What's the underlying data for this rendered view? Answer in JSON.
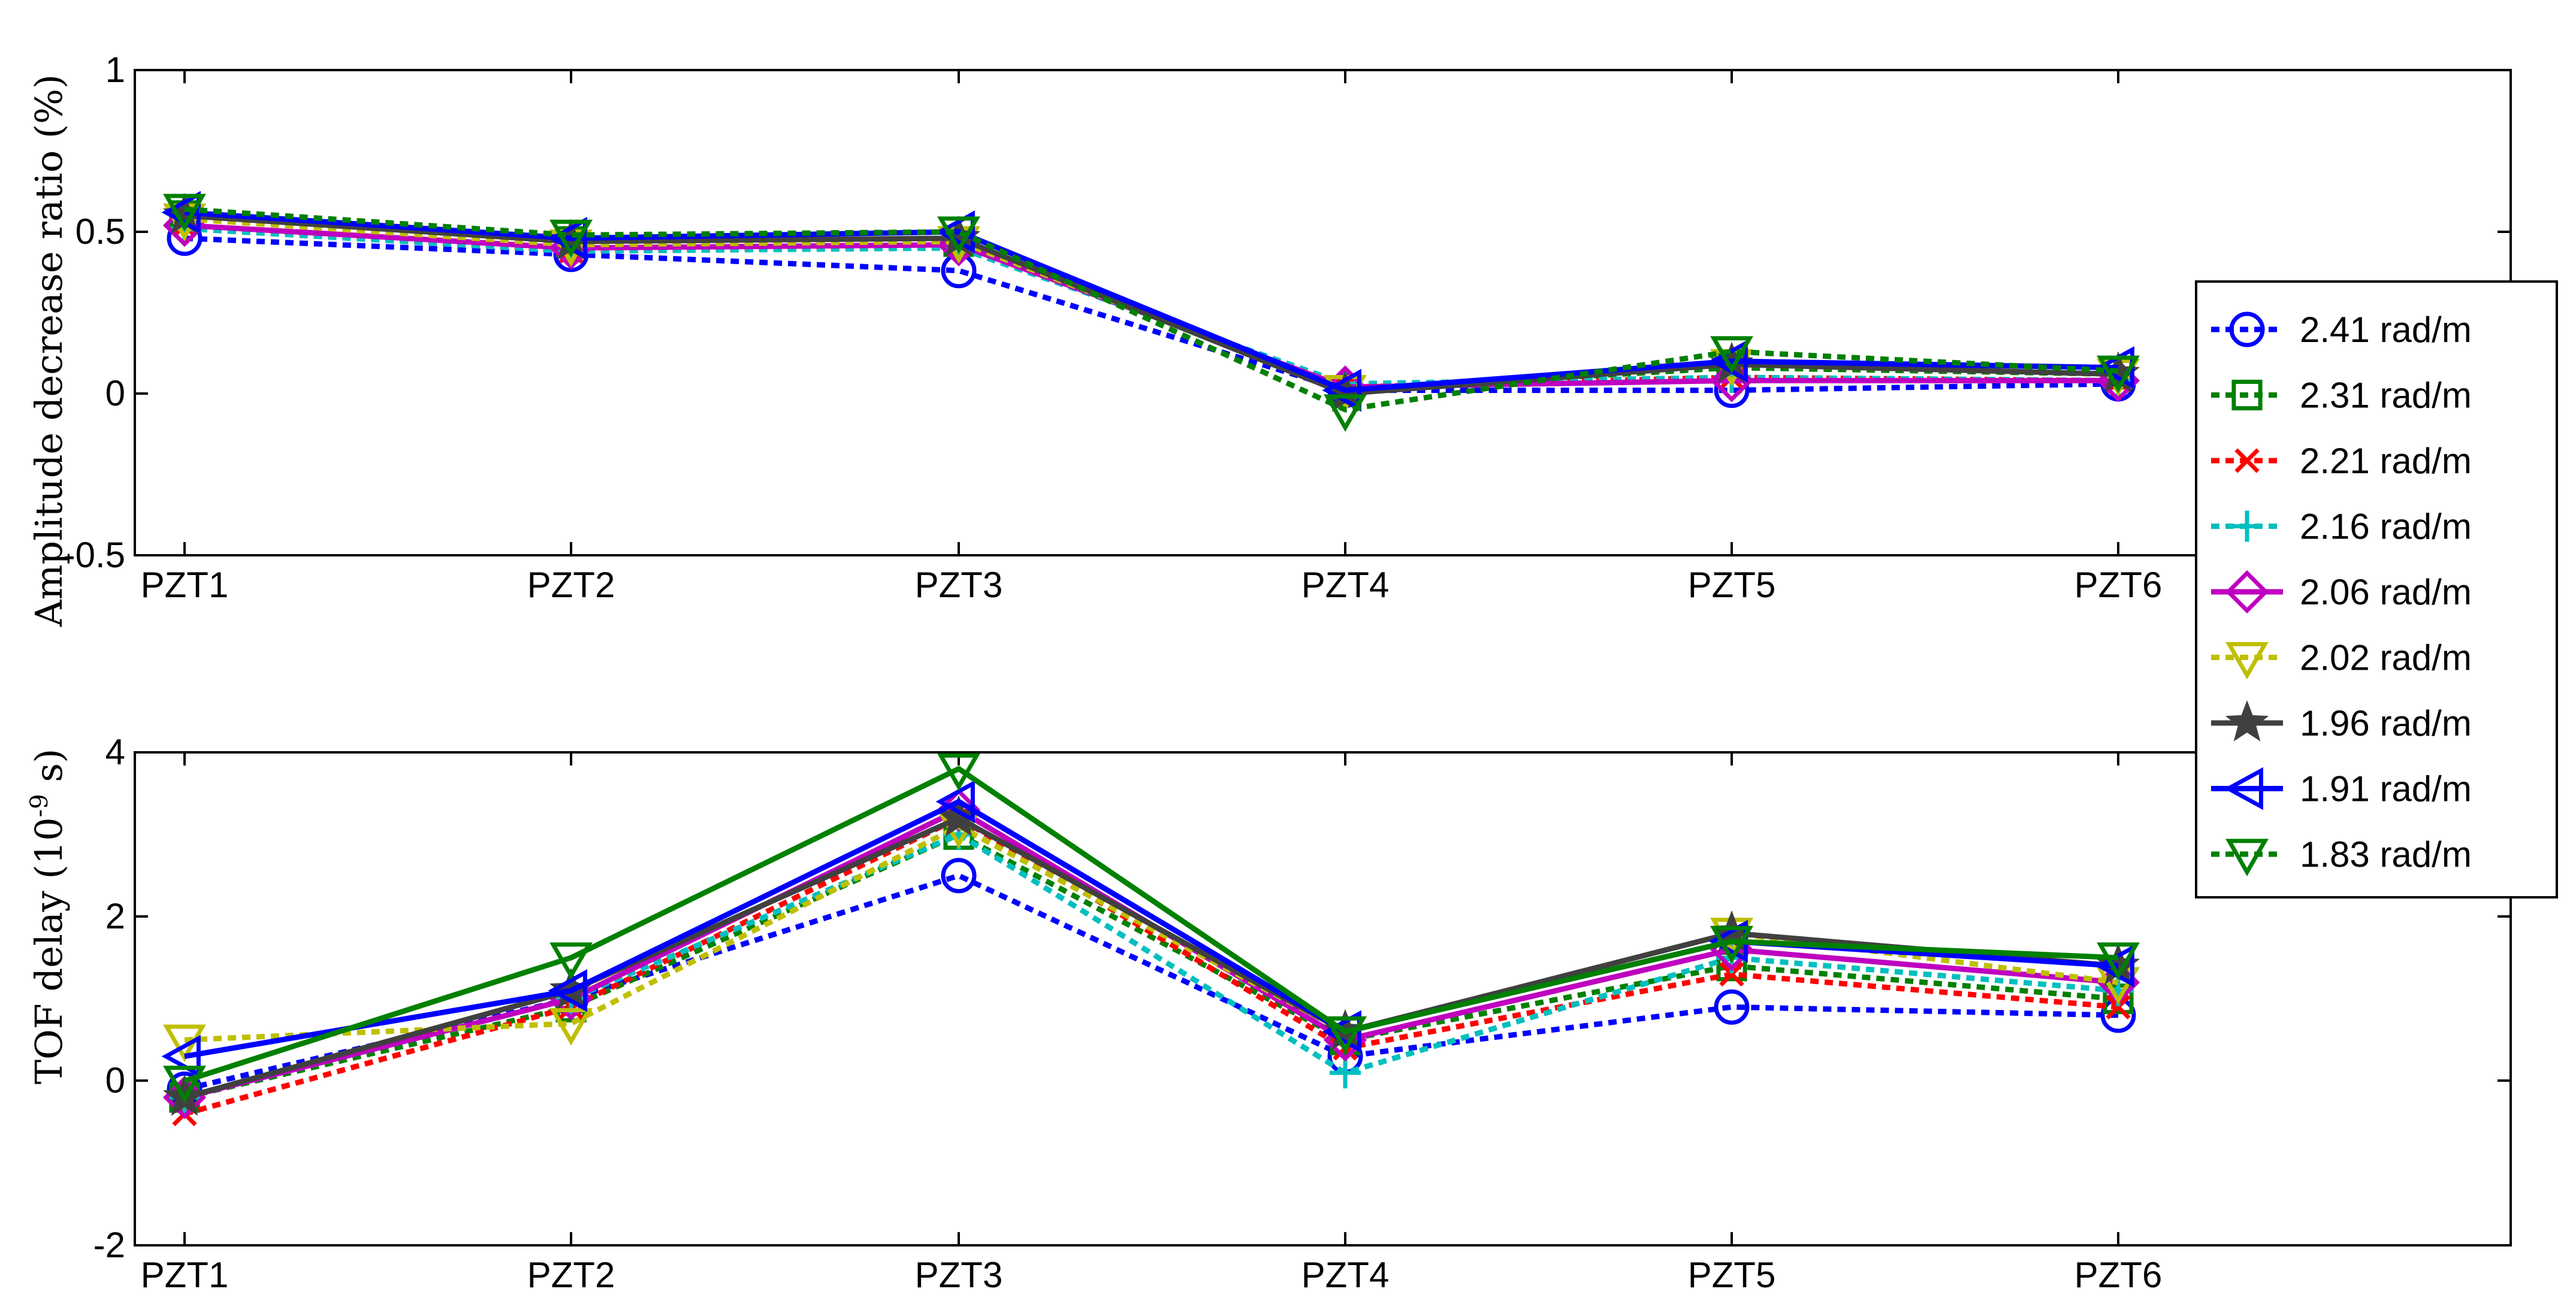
{
  "chart_data": [
    {
      "type": "line",
      "ylabel": "Amplitude decrease ratio (%)",
      "categories": [
        "PZT1",
        "PZT2",
        "PZT3",
        "PZT4",
        "PZT5",
        "PZT6"
      ],
      "ylim": [
        -0.5,
        1
      ],
      "yticks": [
        "1",
        "0.5",
        "0",
        "-0.5"
      ],
      "series": [
        {
          "name": "2.41 rad/m",
          "color": "#0000ff",
          "marker": "circle",
          "dashed": true,
          "values": [
            0.48,
            0.43,
            0.38,
            0.01,
            0.01,
            0.03
          ]
        },
        {
          "name": "2.31 rad/m",
          "color": "#008000",
          "marker": "square",
          "dashed": true,
          "values": [
            0.55,
            0.47,
            0.47,
            0.01,
            0.08,
            0.06
          ]
        },
        {
          "name": "2.21 rad/m",
          "color": "#ff0000",
          "marker": "x",
          "dashed": true,
          "values": [
            0.52,
            0.44,
            0.46,
            0.02,
            0.05,
            0.04
          ]
        },
        {
          "name": "2.16 rad/m",
          "color": "#00bfbf",
          "marker": "plus",
          "dashed": true,
          "values": [
            0.51,
            0.44,
            0.45,
            0.03,
            0.05,
            0.04
          ]
        },
        {
          "name": "2.06 rad/m",
          "color": "#bf00bf",
          "marker": "diamond",
          "dashed": false,
          "values": [
            0.52,
            0.45,
            0.46,
            0.02,
            0.04,
            0.04
          ]
        },
        {
          "name": "2.02 rad/m",
          "color": "#bfbf00",
          "marker": "triangle-down",
          "dashed": true,
          "values": [
            0.54,
            0.46,
            0.47,
            0.01,
            0.09,
            0.06
          ]
        },
        {
          "name": "1.96 rad/m",
          "color": "#404040",
          "marker": "star",
          "dashed": false,
          "values": [
            0.55,
            0.47,
            0.48,
            0.0,
            0.09,
            0.06
          ]
        },
        {
          "name": "1.91 rad/m",
          "color": "#0000ff",
          "marker": "triangle-left",
          "dashed": false,
          "values": [
            0.56,
            0.48,
            0.5,
            0.01,
            0.1,
            0.08
          ]
        },
        {
          "name": "1.83 rad/m",
          "color": "#008000",
          "marker": "triangle-down",
          "dashed": true,
          "values": [
            0.57,
            0.49,
            0.5,
            -0.05,
            0.13,
            0.07
          ]
        }
      ]
    },
    {
      "type": "line",
      "ylabel_main": "TOF delay (10",
      "ylabel_sup": "-9",
      "ylabel_tail": " s)",
      "categories": [
        "PZT1",
        "PZT2",
        "PZT3",
        "PZT4",
        "PZT5",
        "PZT6"
      ],
      "ylim": [
        -2,
        4
      ],
      "yticks": [
        "4",
        "2",
        "0",
        "-2"
      ],
      "series": [
        {
          "name": "2.41 rad/m",
          "color": "#0000ff",
          "marker": "circle",
          "dashed": true,
          "values": [
            -0.1,
            1.0,
            2.5,
            0.3,
            0.9,
            0.8
          ]
        },
        {
          "name": "2.31 rad/m",
          "color": "#008000",
          "marker": "square",
          "dashed": true,
          "values": [
            -0.2,
            0.9,
            3.0,
            0.5,
            1.4,
            1.0
          ]
        },
        {
          "name": "2.21 rad/m",
          "color": "#ff0000",
          "marker": "x",
          "dashed": true,
          "values": [
            -0.4,
            0.9,
            3.2,
            0.4,
            1.3,
            0.9
          ]
        },
        {
          "name": "2.16 rad/m",
          "color": "#00bfbf",
          "marker": "plus",
          "dashed": true,
          "values": [
            -0.2,
            1.0,
            3.0,
            0.1,
            1.5,
            1.1
          ]
        },
        {
          "name": "2.06 rad/m",
          "color": "#bf00bf",
          "marker": "diamond",
          "dashed": false,
          "values": [
            -0.2,
            1.0,
            3.3,
            0.5,
            1.6,
            1.2
          ]
        },
        {
          "name": "2.02 rad/m",
          "color": "#bfbf00",
          "marker": "triangle-down",
          "dashed": true,
          "values": [
            0.5,
            0.7,
            3.1,
            0.6,
            1.8,
            1.2
          ]
        },
        {
          "name": "1.96 rad/m",
          "color": "#404040",
          "marker": "star",
          "dashed": false,
          "values": [
            -0.2,
            1.1,
            3.2,
            0.6,
            1.8,
            1.4
          ]
        },
        {
          "name": "1.91 rad/m",
          "color": "#0000ff",
          "marker": "triangle-left",
          "dashed": false,
          "values": [
            0.3,
            1.1,
            3.4,
            0.6,
            1.7,
            1.4
          ]
        },
        {
          "name": "1.83 rad/m",
          "color": "#008000",
          "marker": "triangle-down",
          "dashed": false,
          "values": [
            0.0,
            1.5,
            3.8,
            0.6,
            1.7,
            1.5
          ]
        }
      ]
    }
  ],
  "legend": {
    "entries": [
      "2.41 rad/m",
      "2.31 rad/m",
      "2.21 rad/m",
      "2.16 rad/m",
      "2.06 rad/m",
      "2.02 rad/m",
      "1.96 rad/m",
      "1.91 rad/m",
      "1.83 rad/m"
    ]
  }
}
